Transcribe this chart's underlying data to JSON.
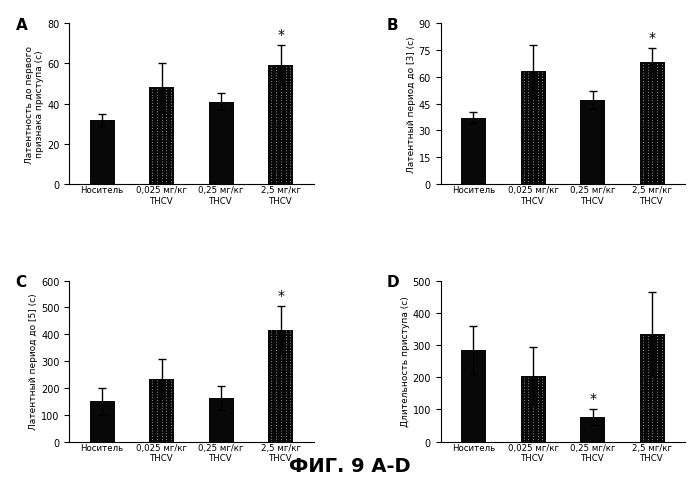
{
  "panels": [
    {
      "label": "A",
      "ylabel": "Латентность до первого\nпризнака приступа (с)",
      "ylim": [
        0,
        80
      ],
      "yticks": [
        0,
        20,
        40,
        60,
        80
      ],
      "values": [
        32,
        48,
        41,
        59
      ],
      "errors": [
        3,
        12,
        4,
        10
      ],
      "star_idx": 3,
      "dashed": [
        false,
        true,
        false,
        true
      ]
    },
    {
      "label": "B",
      "ylabel": "Латентный период до [3] (с)",
      "ylim": [
        0,
        90
      ],
      "yticks": [
        0,
        15,
        30,
        45,
        60,
        75,
        90
      ],
      "values": [
        37,
        63,
        47,
        68
      ],
      "errors": [
        3,
        15,
        5,
        8
      ],
      "star_idx": 3,
      "dashed": [
        false,
        true,
        false,
        true
      ]
    },
    {
      "label": "C",
      "ylabel": "Латентный период до [5] (с)",
      "ylim": [
        0,
        600
      ],
      "yticks": [
        0,
        100,
        200,
        300,
        400,
        500,
        600
      ],
      "values": [
        150,
        232,
        162,
        415
      ],
      "errors": [
        50,
        75,
        45,
        90
      ],
      "star_idx": 3,
      "dashed": [
        false,
        true,
        false,
        true
      ]
    },
    {
      "label": "D",
      "ylabel": "Длительность приступа (с)",
      "ylim": [
        0,
        500
      ],
      "yticks": [
        0,
        100,
        200,
        300,
        400,
        500
      ],
      "values": [
        285,
        205,
        75,
        335
      ],
      "errors": [
        75,
        90,
        25,
        130
      ],
      "star_idx": 2,
      "dashed": [
        false,
        true,
        false,
        true
      ]
    }
  ],
  "categories": [
    "Носитель",
    "0,025 мг/кг\nTHCV",
    "0,25 мг/кг\nTHCV",
    "2,5 мг/кг\nTHCV"
  ],
  "bar_color": "#080808",
  "bar_width": 0.42,
  "figure_title": "ФИГ. 9 A-D",
  "background_color": "#ffffff"
}
